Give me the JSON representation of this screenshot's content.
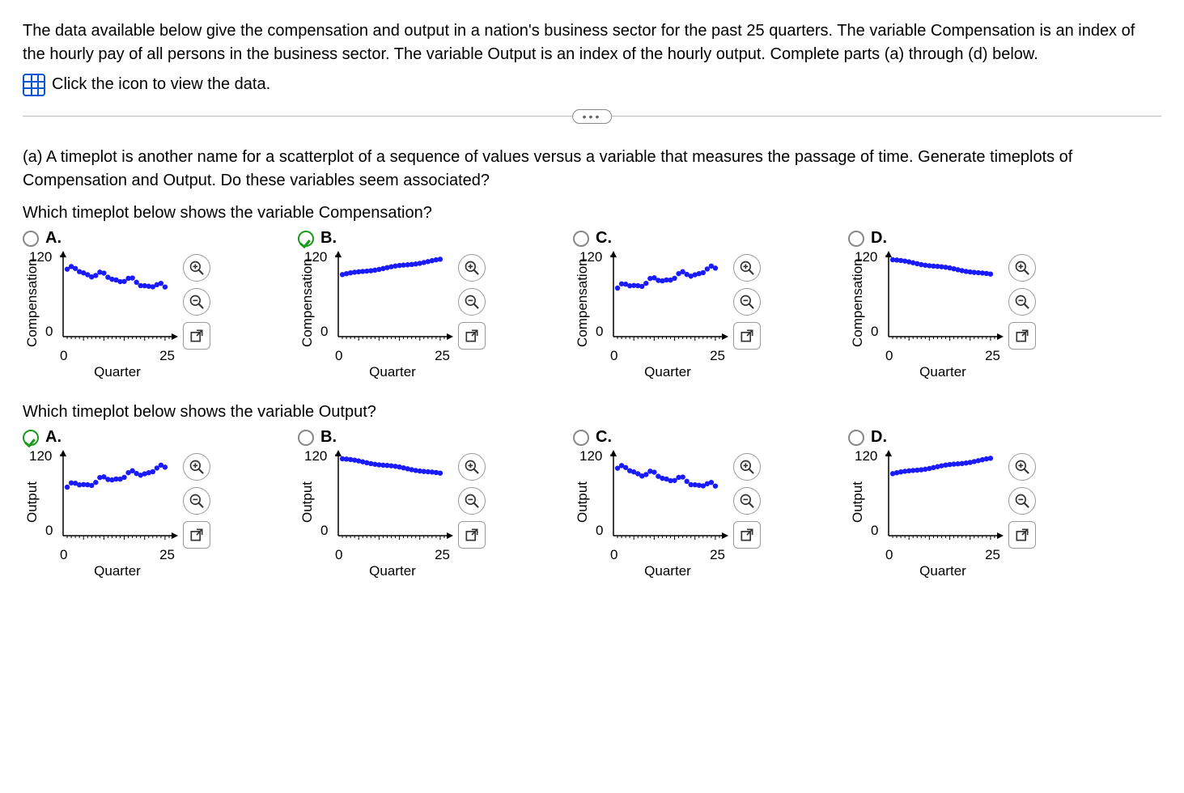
{
  "intro": {
    "p1": "The data available below give the compensation and output in a nation's business sector for the past 25 quarters. The variable Compensation is an index of the hourly pay of all persons in the business sector. The variable Output is an index of the hourly output. Complete parts (a) through (d) below.",
    "data_link": "Click the icon to view the data."
  },
  "partA": {
    "prompt": "(a) A timeplot is another name for a scatterplot of a sequence of values versus a variable that measures the passage of time. Generate timeplots of Compensation and Output. Do these variables seem associated?",
    "q1": "Which timeplot below shows the variable Compensation?",
    "q2": "Which timeplot below shows the variable Output?"
  },
  "chart_common": {
    "xlabel": "Quarter",
    "xtick0": "0",
    "xtick1": "25",
    "ytick0": "0",
    "ytick1": "120",
    "point_color": "#1a1aff",
    "axis_color": "#000000"
  },
  "row1": {
    "ylabel": "Compensation",
    "choices": [
      {
        "label": "A.",
        "checked": false,
        "shape": "down_wavy_low",
        "xrange": [
          1,
          25
        ],
        "yfrom": 100,
        "yto": 72,
        "wavy": true
      },
      {
        "label": "B.",
        "checked": true,
        "shape": "up_tight",
        "xrange": [
          1,
          25
        ],
        "yfrom": 92,
        "yto": 114,
        "wavy": false
      },
      {
        "label": "C.",
        "checked": false,
        "shape": "up_wavy_low",
        "xrange": [
          1,
          25
        ],
        "yfrom": 72,
        "yto": 100,
        "wavy": true
      },
      {
        "label": "D.",
        "checked": false,
        "shape": "down_tight_high",
        "xrange": [
          1,
          25
        ],
        "yfrom": 114,
        "yto": 92,
        "wavy": false
      }
    ]
  },
  "row2": {
    "ylabel": "Output",
    "choices": [
      {
        "label": "A.",
        "checked": true,
        "shape": "up_wavy_low",
        "xrange": [
          1,
          25
        ],
        "yfrom": 72,
        "yto": 100,
        "wavy": true
      },
      {
        "label": "B.",
        "checked": false,
        "shape": "down_tight_high",
        "xrange": [
          1,
          25
        ],
        "yfrom": 114,
        "yto": 92,
        "wavy": false
      },
      {
        "label": "C.",
        "checked": false,
        "shape": "down_wavy_low",
        "xrange": [
          1,
          25
        ],
        "yfrom": 100,
        "yto": 72,
        "wavy": true
      },
      {
        "label": "D.",
        "checked": false,
        "shape": "up_tight",
        "xrange": [
          1,
          25
        ],
        "yfrom": 92,
        "yto": 114,
        "wavy": false
      }
    ]
  }
}
